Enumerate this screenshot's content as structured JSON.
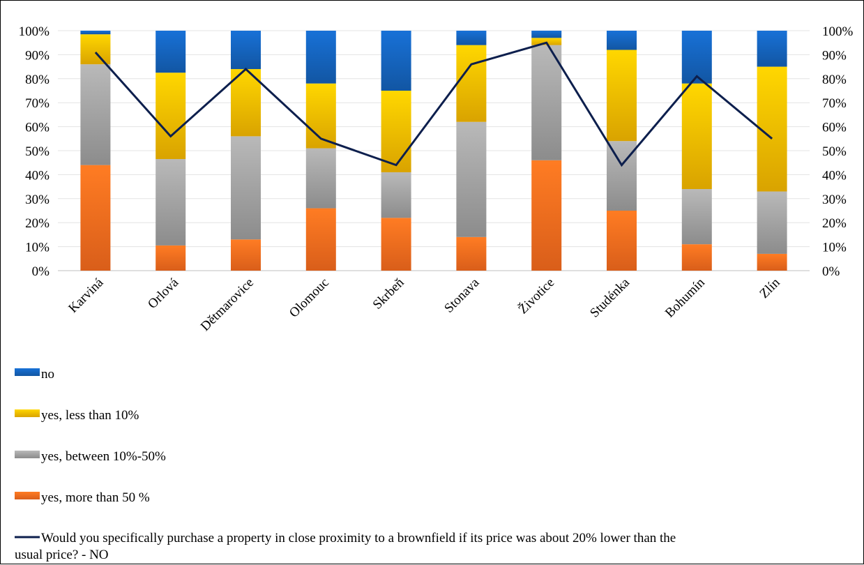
{
  "chart_data": {
    "type": "bar",
    "stacked": true,
    "categories": [
      "Karviná",
      "Orlová",
      "Dětmarovice",
      "Olomouc",
      "Skrbeň",
      "Stonava",
      "Životice",
      "Studénka",
      "Bohumín",
      "Zlín"
    ],
    "series": [
      {
        "name": "no",
        "color": "#1565C0",
        "values": [
          1.5,
          17.5,
          16,
          22,
          25,
          6,
          3,
          8,
          22,
          15
        ]
      },
      {
        "name": "yes, less than 10%",
        "color": "#FFC000",
        "values": [
          12.5,
          36,
          28,
          27,
          34,
          32,
          3,
          38,
          44,
          52
        ]
      },
      {
        "name": "yes, between 10%-50%",
        "color": "#A5A5A5",
        "values": [
          42,
          36,
          43,
          25,
          19,
          48,
          48,
          29,
          23,
          26
        ]
      },
      {
        "name": "yes, more than 50 %",
        "color": "#FF6F1F",
        "values": [
          44,
          10.5,
          13,
          26,
          22,
          14,
          46,
          25,
          11,
          7
        ]
      }
    ],
    "line": {
      "name": "Would you specifically purchase a property in close proximity to a brownfield if its price was about 20% lower than the usual price? - NO",
      "color": "#0D1F4D",
      "values": [
        91,
        56,
        84,
        55,
        44,
        86,
        95,
        44,
        81,
        55
      ]
    },
    "legend": {
      "position": "bottom",
      "items": [
        "no",
        "yes, less than 10%",
        "yes, between 10%-50%",
        "yes, more than 50 %"
      ],
      "line_label_1": "Would you specifically purchase a property in close proximity to a brownfield if its price was about 20% lower than the",
      "line_label_2": "usual price? - NO"
    },
    "ylim": [
      0,
      100
    ],
    "y_ticks": [
      "0%",
      "10%",
      "20%",
      "30%",
      "40%",
      "50%",
      "60%",
      "70%",
      "80%",
      "90%",
      "100%"
    ],
    "y2_ticks": [
      "0%",
      "10%",
      "20%",
      "30%",
      "40%",
      "50%",
      "60%",
      "70%",
      "80%",
      "90%",
      "100%"
    ],
    "grid": true
  }
}
